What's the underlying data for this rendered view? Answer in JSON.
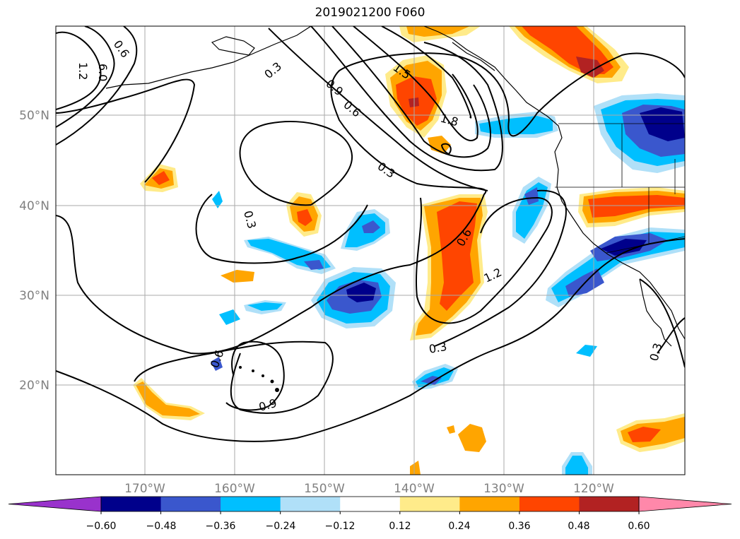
{
  "title": "2019021200 F060",
  "map": {
    "lat_labels": [
      "50°N",
      "40°N",
      "30°N",
      "20°N"
    ],
    "lon_labels": [
      "170°W",
      "160°W",
      "150°W",
      "140°W",
      "130°W",
      "120°W"
    ],
    "gridlines": true
  },
  "contour_labels": [
    "0.6",
    "1.2",
    "6.0",
    "0.3",
    "1.5",
    "0.9",
    "0.6",
    "1.8",
    "0.3",
    "0.3",
    "0.6",
    "1.2",
    "0.6",
    "0.9",
    "0.3",
    "0.3"
  ],
  "colorbar": {
    "ticks": [
      "−0.60",
      "−0.48",
      "−0.36",
      "−0.24",
      "−0.12",
      "0.12",
      "0.24",
      "0.36",
      "0.48",
      "0.60"
    ],
    "colors": [
      "#9932cc",
      "#00008b",
      "#3a57cd",
      "#00bfff",
      "#b0e0f8",
      "#ffffff",
      "#ffeb8a",
      "#ffa500",
      "#ff4500",
      "#b22222",
      "#ff88aa"
    ]
  }
}
